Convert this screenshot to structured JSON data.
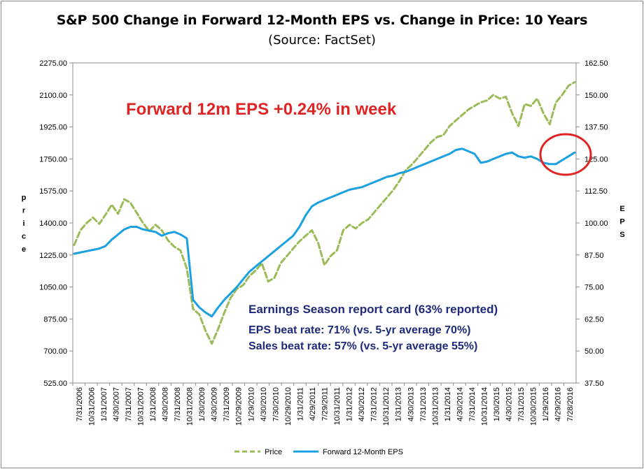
{
  "chart_data": {
    "type": "line",
    "title": "S&P 500 Change in Forward 12-Month EPS vs. Change in Price: 10 Years",
    "subtitle": "(Source: FactSet)",
    "ylabel_left": "Price",
    "ylabel_right": "EPS",
    "y_left_range": [
      525,
      2275
    ],
    "y_right_range": [
      37.5,
      162.5
    ],
    "y_left_ticks": [
      "2275.00",
      "2100.00",
      "1925.00",
      "1750.00",
      "1575.00",
      "1400.00",
      "1225.00",
      "1050.00",
      "875.00",
      "700.00",
      "525.00"
    ],
    "y_right_ticks": [
      "162.50",
      "150.00",
      "137.50",
      "125.00",
      "112.50",
      "100.00",
      "87.50",
      "75.00",
      "62.50",
      "50.00",
      "37.50"
    ],
    "x_labels": [
      "7/31/2006",
      "10/31/2006",
      "1/31/2007",
      "4/30/2007",
      "7/31/2007",
      "10/31/2007",
      "1/31/2008",
      "4/30/2008",
      "7/31/2008",
      "10/31/2008",
      "1/30/2009",
      "4/30/2009",
      "7/31/2009",
      "10/29/2009",
      "1/29/2010",
      "4/30/2010",
      "7/30/2010",
      "10/29/2010",
      "1/31/2011",
      "4/29/2011",
      "7/29/2011",
      "10/31/2011",
      "1/31/2012",
      "4/30/2012",
      "7/31/2012",
      "10/31/2012",
      "1/31/2013",
      "4/30/2013",
      "7/31/2013",
      "10/31/2013",
      "1/31/2014",
      "4/30/2014",
      "7/31/2014",
      "10/31/2014",
      "1/30/2015",
      "4/30/2015",
      "7/31/2015",
      "10/30/2015",
      "1/29/2016",
      "4/29/2016",
      "7/28/2016"
    ],
    "grid": false,
    "legend_position": "bottom",
    "series": [
      {
        "name": "Price",
        "axis": "left",
        "color": "#9bbb59",
        "style": "dashed",
        "values": [
          1280,
          1360,
          1400,
          1430,
          1395,
          1445,
          1500,
          1450,
          1530,
          1510,
          1455,
          1400,
          1355,
          1390,
          1360,
          1305,
          1270,
          1250,
          1150,
          930,
          900,
          810,
          740,
          820,
          910,
          990,
          1040,
          1060,
          1110,
          1140,
          1180,
          1080,
          1100,
          1180,
          1220,
          1260,
          1300,
          1330,
          1360,
          1290,
          1170,
          1220,
          1250,
          1360,
          1390,
          1370,
          1400,
          1420,
          1460,
          1500,
          1540,
          1580,
          1630,
          1690,
          1720,
          1760,
          1800,
          1840,
          1870,
          1880,
          1930,
          1960,
          1990,
          2020,
          2040,
          2060,
          2070,
          2100,
          2080,
          2090,
          2000,
          1930,
          2050,
          2040,
          2080,
          2000,
          1940,
          2060,
          2100,
          2150,
          2170
        ]
      },
      {
        "name": "Forward 12-Month EPS",
        "axis": "right",
        "color": "#1ba1e2",
        "style": "solid",
        "values": [
          88,
          88.5,
          89,
          89.5,
          90,
          91,
          93.5,
          95.5,
          97.5,
          98.5,
          98.5,
          97.5,
          97,
          96.5,
          95,
          96,
          96.5,
          95.5,
          94,
          70,
          67,
          65,
          63.5,
          67,
          70,
          72.5,
          75,
          78,
          81,
          83,
          85,
          87,
          89,
          91,
          93,
          95,
          98.5,
          103,
          106.5,
          108,
          109,
          110,
          111,
          112,
          113,
          113.5,
          114,
          115,
          116,
          117,
          118,
          118.5,
          119.5,
          120,
          121,
          122,
          123,
          124,
          125,
          126,
          127,
          128.5,
          129,
          128,
          127,
          123.5,
          124,
          125,
          126,
          127,
          127.5,
          126,
          125.5,
          126,
          125,
          123.5,
          123,
          123,
          124.5,
          126,
          127.5
        ]
      }
    ]
  },
  "annotations": {
    "eps_week": "Forward 12m EPS +0.24% in week",
    "report_card_header": "Earnings Season report card (63% reported)",
    "eps_beat": "EPS beat rate: 71% (vs. 5-yr average 70%)",
    "sales_beat": "Sales beat rate: 57% (vs. 5-yr average 55%)"
  },
  "colors": {
    "highlight_circle": "#e02424",
    "annotation_blue": "#1f2a7a",
    "annotation_red": "#e02424"
  }
}
